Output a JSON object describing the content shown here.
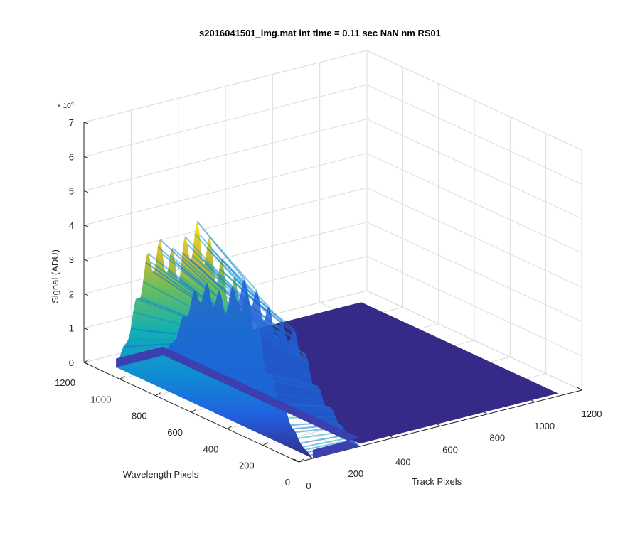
{
  "chart_data": {
    "type": "surface",
    "title": "s2016041501_img.mat int time = 0.11 sec  NaN nm RS01",
    "xlabel": "Track Pixels",
    "ylabel": "Wavelength Pixels",
    "zlabel": "Signal (ADU)",
    "z_exponent_label": "× 10",
    "z_exponent_power": "4",
    "x_ticks": [
      "0",
      "200",
      "400",
      "600",
      "800",
      "1000",
      "1200"
    ],
    "y_ticks": [
      "0",
      "200",
      "400",
      "600",
      "800",
      "1000",
      "1200"
    ],
    "z_ticks": [
      "0",
      "1",
      "2",
      "3",
      "4",
      "5",
      "6",
      "7"
    ],
    "xlim": [
      0,
      1200
    ],
    "ylim": [
      0,
      1200
    ],
    "zlim": [
      0,
      70000
    ],
    "grid": true,
    "colormap": "parula",
    "colors": {
      "low": "#352a87",
      "mid_low": "#0f6fd8",
      "mid": "#12b0b2",
      "mid_high": "#8bc14a",
      "high": "#f9e422"
    },
    "surface_profile": {
      "signal_track_range": [
        0,
        260
      ],
      "flat_track_range": [
        260,
        1100
      ],
      "wavelength_range": [
        0,
        1100
      ],
      "peak_signal": 47000,
      "peaks_along_wavelength": [
        {
          "wavelength": 1050,
          "signal": 8000
        },
        {
          "wavelength": 950,
          "signal": 30000
        },
        {
          "wavelength": 850,
          "signal": 37000
        },
        {
          "wavelength": 760,
          "signal": 41000
        },
        {
          "wavelength": 680,
          "signal": 47000
        },
        {
          "wavelength": 600,
          "signal": 43000
        },
        {
          "wavelength": 520,
          "signal": 44000
        },
        {
          "wavelength": 430,
          "signal": 39000
        },
        {
          "wavelength": 340,
          "signal": 32000
        },
        {
          "wavelength": 250,
          "signal": 20000
        },
        {
          "wavelength": 170,
          "signal": 12000
        },
        {
          "wavelength": 80,
          "signal": 3000
        }
      ]
    }
  }
}
